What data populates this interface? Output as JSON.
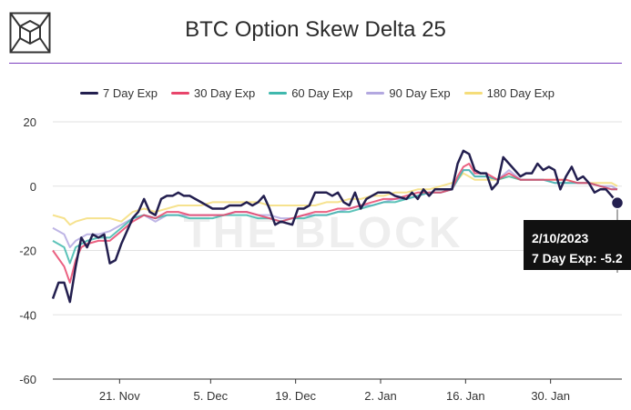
{
  "title": "BTC Option Skew Delta 25",
  "watermark": "THE BLOCK",
  "tooltip": {
    "date": "2/10/2023",
    "text": "7 Day Exp: -5.2"
  },
  "colors": {
    "accent": "#7b3fbf",
    "tooltip_bg": "#111111"
  },
  "chart_data": {
    "type": "line",
    "title": "BTC Option Skew Delta 25",
    "xlabel": "",
    "ylabel": "",
    "ylim": [
      -60,
      20
    ],
    "yticks": [
      20,
      0,
      -20,
      -40,
      -60
    ],
    "xticks": [
      {
        "label": "21. Nov",
        "x": 11
      },
      {
        "label": "5. Dec",
        "x": 26
      },
      {
        "label": "19. Dec",
        "x": 40
      },
      {
        "label": "2. Jan",
        "x": 54
      },
      {
        "label": "16. Jan",
        "x": 68
      },
      {
        "label": "30. Jan",
        "x": 82
      }
    ],
    "x_range": [
      0,
      93
    ],
    "grid": "horizontal",
    "legend_position": "top",
    "series": [
      {
        "name": "7 Day Exp",
        "color": "#231f4f",
        "points": [
          [
            0,
            -35
          ],
          [
            1,
            -30
          ],
          [
            2,
            -30
          ],
          [
            3,
            -36
          ],
          [
            4,
            -25
          ],
          [
            5,
            -16
          ],
          [
            6,
            -19
          ],
          [
            7,
            -15
          ],
          [
            8,
            -16
          ],
          [
            9,
            -15
          ],
          [
            10,
            -24
          ],
          [
            11,
            -23
          ],
          [
            12,
            -18
          ],
          [
            14,
            -10
          ],
          [
            15,
            -8
          ],
          [
            16,
            -4
          ],
          [
            17,
            -8
          ],
          [
            18,
            -9
          ],
          [
            19,
            -4
          ],
          [
            20,
            -3
          ],
          [
            21,
            -3
          ],
          [
            22,
            -2
          ],
          [
            23,
            -3
          ],
          [
            24,
            -3
          ],
          [
            26,
            -5
          ],
          [
            28,
            -7
          ],
          [
            30,
            -7
          ],
          [
            31,
            -6
          ],
          [
            33,
            -6
          ],
          [
            34,
            -5
          ],
          [
            35,
            -6
          ],
          [
            36,
            -5
          ],
          [
            37,
            -3
          ],
          [
            38,
            -7
          ],
          [
            39,
            -12
          ],
          [
            40,
            -11
          ],
          [
            42,
            -12
          ],
          [
            43,
            -7
          ],
          [
            44,
            -7
          ],
          [
            45,
            -6
          ],
          [
            46,
            -2
          ],
          [
            48,
            -2
          ],
          [
            49,
            -3
          ],
          [
            50,
            -2
          ],
          [
            51,
            -5
          ],
          [
            52,
            -6
          ],
          [
            53,
            -2
          ],
          [
            54,
            -7
          ],
          [
            55,
            -4
          ],
          [
            57,
            -2
          ],
          [
            59,
            -2
          ],
          [
            60,
            -3
          ],
          [
            62,
            -4
          ],
          [
            63,
            -2
          ],
          [
            64,
            -4
          ],
          [
            65,
            -1
          ],
          [
            66,
            -3
          ],
          [
            67,
            -1
          ],
          [
            68,
            -1
          ],
          [
            69,
            -1
          ],
          [
            70,
            -1
          ],
          [
            71,
            7
          ],
          [
            72,
            11
          ],
          [
            73,
            10
          ],
          [
            74,
            5
          ],
          [
            75,
            4
          ],
          [
            76,
            4
          ],
          [
            77,
            -1
          ],
          [
            78,
            1
          ],
          [
            79,
            9
          ],
          [
            80,
            7
          ],
          [
            81,
            5
          ],
          [
            82,
            3
          ],
          [
            83,
            4
          ],
          [
            84,
            4
          ],
          [
            85,
            7
          ],
          [
            86,
            5
          ],
          [
            87,
            6
          ],
          [
            88,
            5
          ],
          [
            89,
            -1
          ],
          [
            90,
            3
          ],
          [
            91,
            6
          ],
          [
            92,
            2
          ],
          [
            93,
            3
          ],
          [
            94,
            1
          ],
          [
            95,
            -2
          ],
          [
            96,
            -1
          ],
          [
            97,
            -1
          ],
          [
            98,
            -3
          ],
          [
            99,
            -5.2
          ]
        ]
      },
      {
        "name": "30 Day Exp",
        "color": "#e8456b",
        "points": [
          [
            0,
            -20
          ],
          [
            2,
            -25
          ],
          [
            3,
            -30
          ],
          [
            4,
            -23
          ],
          [
            5,
            -19
          ],
          [
            6,
            -18
          ],
          [
            8,
            -17
          ],
          [
            10,
            -17
          ],
          [
            12,
            -14
          ],
          [
            14,
            -11
          ],
          [
            16,
            -9
          ],
          [
            18,
            -10
          ],
          [
            20,
            -8
          ],
          [
            22,
            -8
          ],
          [
            24,
            -9
          ],
          [
            26,
            -9
          ],
          [
            28,
            -9
          ],
          [
            30,
            -9
          ],
          [
            32,
            -8
          ],
          [
            34,
            -8
          ],
          [
            36,
            -9
          ],
          [
            38,
            -10
          ],
          [
            40,
            -11
          ],
          [
            42,
            -10
          ],
          [
            44,
            -9
          ],
          [
            46,
            -8
          ],
          [
            48,
            -8
          ],
          [
            50,
            -7
          ],
          [
            52,
            -7
          ],
          [
            54,
            -6
          ],
          [
            56,
            -5
          ],
          [
            58,
            -4
          ],
          [
            60,
            -4
          ],
          [
            62,
            -3
          ],
          [
            64,
            -2
          ],
          [
            66,
            -2
          ],
          [
            68,
            -2
          ],
          [
            70,
            -1
          ],
          [
            71,
            3
          ],
          [
            72,
            6
          ],
          [
            73,
            7
          ],
          [
            74,
            4
          ],
          [
            76,
            4
          ],
          [
            78,
            2
          ],
          [
            79,
            3
          ],
          [
            80,
            4
          ],
          [
            82,
            2
          ],
          [
            84,
            2
          ],
          [
            86,
            2
          ],
          [
            88,
            2
          ],
          [
            90,
            2
          ],
          [
            92,
            1
          ],
          [
            94,
            1
          ],
          [
            96,
            0
          ],
          [
            98,
            -1
          ],
          [
            99,
            -1
          ]
        ]
      },
      {
        "name": "60 Day Exp",
        "color": "#3fb8ad",
        "points": [
          [
            0,
            -17
          ],
          [
            2,
            -19
          ],
          [
            3,
            -24
          ],
          [
            4,
            -19
          ],
          [
            6,
            -17
          ],
          [
            8,
            -16
          ],
          [
            10,
            -16
          ],
          [
            12,
            -13
          ],
          [
            14,
            -10
          ],
          [
            16,
            -9
          ],
          [
            18,
            -10
          ],
          [
            20,
            -9
          ],
          [
            22,
            -9
          ],
          [
            24,
            -10
          ],
          [
            26,
            -10
          ],
          [
            28,
            -10
          ],
          [
            30,
            -9
          ],
          [
            32,
            -9
          ],
          [
            34,
            -9
          ],
          [
            36,
            -10
          ],
          [
            38,
            -10
          ],
          [
            40,
            -11
          ],
          [
            42,
            -10
          ],
          [
            44,
            -10
          ],
          [
            46,
            -9
          ],
          [
            48,
            -9
          ],
          [
            50,
            -8
          ],
          [
            52,
            -8
          ],
          [
            54,
            -7
          ],
          [
            56,
            -6
          ],
          [
            58,
            -5
          ],
          [
            60,
            -5
          ],
          [
            62,
            -4
          ],
          [
            64,
            -3
          ],
          [
            66,
            -2
          ],
          [
            68,
            -2
          ],
          [
            70,
            -1
          ],
          [
            71,
            2
          ],
          [
            72,
            5
          ],
          [
            73,
            5
          ],
          [
            74,
            3
          ],
          [
            76,
            3
          ],
          [
            78,
            2
          ],
          [
            80,
            3
          ],
          [
            82,
            2
          ],
          [
            84,
            2
          ],
          [
            86,
            2
          ],
          [
            88,
            1
          ],
          [
            90,
            1
          ],
          [
            92,
            1
          ],
          [
            94,
            1
          ],
          [
            96,
            0
          ],
          [
            98,
            -1
          ],
          [
            99,
            -1
          ]
        ]
      },
      {
        "name": "90 Day Exp",
        "color": "#b3a8e0",
        "points": [
          [
            0,
            -13
          ],
          [
            2,
            -15
          ],
          [
            3,
            -19
          ],
          [
            4,
            -17
          ],
          [
            6,
            -15
          ],
          [
            8,
            -15
          ],
          [
            10,
            -14
          ],
          [
            12,
            -12
          ],
          [
            14,
            -10
          ],
          [
            16,
            -9
          ],
          [
            18,
            -11
          ],
          [
            20,
            -9
          ],
          [
            22,
            -9
          ],
          [
            24,
            -9
          ],
          [
            26,
            -9
          ],
          [
            28,
            -9
          ],
          [
            30,
            -9
          ],
          [
            32,
            -8
          ],
          [
            34,
            -8
          ],
          [
            36,
            -9
          ],
          [
            38,
            -9
          ],
          [
            40,
            -10
          ],
          [
            42,
            -10
          ],
          [
            44,
            -9
          ],
          [
            46,
            -9
          ],
          [
            48,
            -9
          ],
          [
            50,
            -8
          ],
          [
            52,
            -7
          ],
          [
            54,
            -6
          ],
          [
            56,
            -6
          ],
          [
            58,
            -5
          ],
          [
            60,
            -4
          ],
          [
            62,
            -4
          ],
          [
            64,
            -3
          ],
          [
            66,
            -2
          ],
          [
            68,
            -2
          ],
          [
            70,
            -1
          ],
          [
            71,
            2
          ],
          [
            72,
            5
          ],
          [
            73,
            5
          ],
          [
            74,
            3
          ],
          [
            76,
            3
          ],
          [
            78,
            2
          ],
          [
            80,
            5
          ],
          [
            82,
            2
          ],
          [
            84,
            2
          ],
          [
            86,
            2
          ],
          [
            88,
            1
          ],
          [
            90,
            1
          ],
          [
            92,
            1
          ],
          [
            94,
            1
          ],
          [
            96,
            0
          ],
          [
            98,
            0
          ],
          [
            99,
            -1
          ]
        ]
      },
      {
        "name": "180 Day Exp",
        "color": "#f5dd7a",
        "points": [
          [
            0,
            -9
          ],
          [
            2,
            -10
          ],
          [
            3,
            -12
          ],
          [
            4,
            -11
          ],
          [
            6,
            -10
          ],
          [
            8,
            -10
          ],
          [
            10,
            -10
          ],
          [
            12,
            -11
          ],
          [
            14,
            -8
          ],
          [
            16,
            -7
          ],
          [
            18,
            -8
          ],
          [
            20,
            -7
          ],
          [
            22,
            -6
          ],
          [
            24,
            -6
          ],
          [
            26,
            -6
          ],
          [
            28,
            -5
          ],
          [
            30,
            -5
          ],
          [
            32,
            -5
          ],
          [
            34,
            -5
          ],
          [
            36,
            -5
          ],
          [
            38,
            -6
          ],
          [
            40,
            -6
          ],
          [
            42,
            -6
          ],
          [
            44,
            -6
          ],
          [
            46,
            -6
          ],
          [
            48,
            -5
          ],
          [
            50,
            -5
          ],
          [
            52,
            -4
          ],
          [
            54,
            -4
          ],
          [
            56,
            -3
          ],
          [
            58,
            -3
          ],
          [
            60,
            -2
          ],
          [
            62,
            -2
          ],
          [
            64,
            -1
          ],
          [
            66,
            -1
          ],
          [
            68,
            0
          ],
          [
            70,
            1
          ],
          [
            71,
            2
          ],
          [
            72,
            4
          ],
          [
            73,
            3
          ],
          [
            74,
            2
          ],
          [
            76,
            2
          ],
          [
            78,
            2
          ],
          [
            80,
            3
          ],
          [
            82,
            2
          ],
          [
            84,
            2
          ],
          [
            86,
            2
          ],
          [
            88,
            2
          ],
          [
            90,
            2
          ],
          [
            92,
            1
          ],
          [
            94,
            1
          ],
          [
            96,
            1
          ],
          [
            98,
            1
          ],
          [
            99,
            0
          ]
        ]
      }
    ]
  }
}
